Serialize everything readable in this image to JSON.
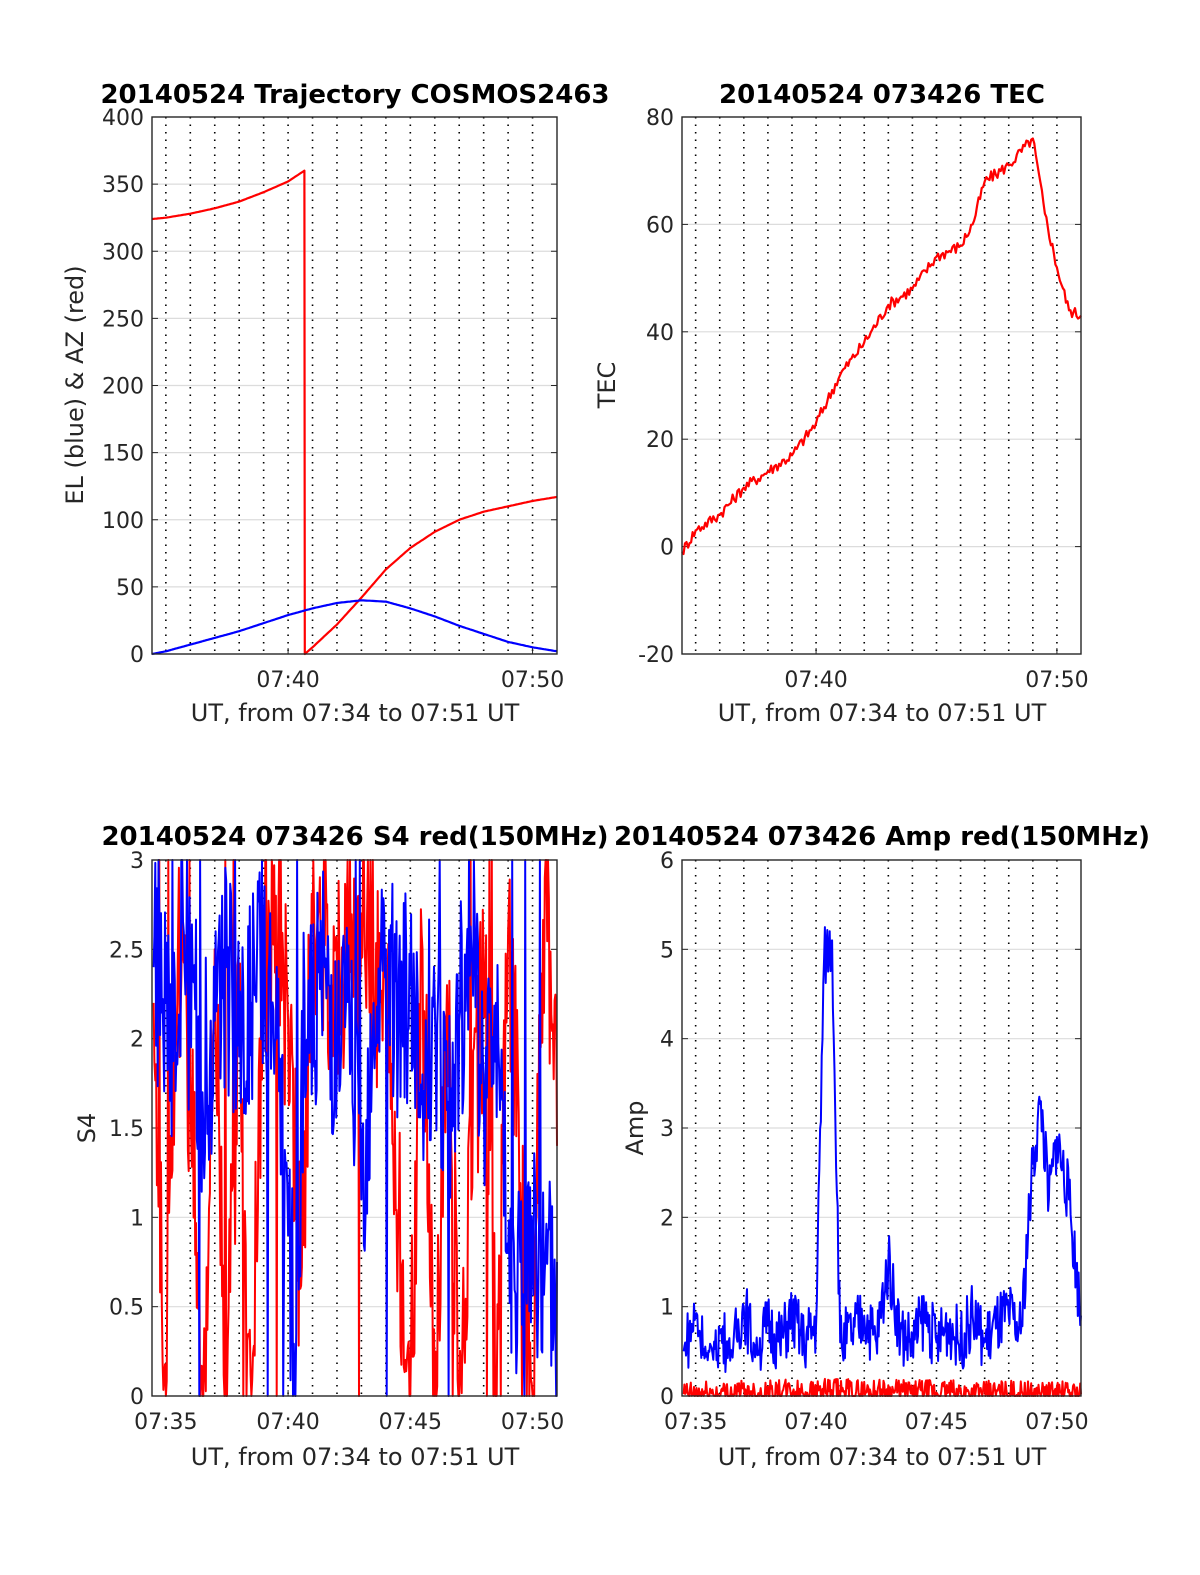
{
  "chart_data": [
    {
      "id": "trajectory",
      "type": "line",
      "title": "20140524 Trajectory COSMOS2463",
      "xlabel": "UT, from 07:34 to 07:51 UT",
      "ylabel": "EL (blue) & AZ (red)",
      "xlim": [
        "07:34:26",
        "07:51:00"
      ],
      "ylim": [
        0,
        400
      ],
      "yticks": [
        "0",
        "50",
        "100",
        "150",
        "200",
        "250",
        "300",
        "350",
        "400"
      ],
      "xticks": [
        "07:40",
        "07:50"
      ],
      "grid": true,
      "series": [
        {
          "color": "#ff0000",
          "points": [
            [
              "07:34:26",
              324
            ],
            [
              "07:35:00",
              325
            ],
            [
              "07:36:00",
              328
            ],
            [
              "07:37:00",
              332
            ],
            [
              "07:38:00",
              337
            ],
            [
              "07:39:00",
              344
            ],
            [
              "07:40:00",
              352
            ],
            [
              "07:40:40",
              360
            ],
            [
              "07:40:41",
              0
            ],
            [
              "07:41:00",
              5
            ],
            [
              "07:42:00",
              22
            ],
            [
              "07:43:00",
              42
            ],
            [
              "07:44:00",
              63
            ],
            [
              "07:45:00",
              79
            ],
            [
              "07:46:00",
              91
            ],
            [
              "07:47:00",
              100
            ],
            [
              "07:48:00",
              106
            ],
            [
              "07:49:00",
              110
            ],
            [
              "07:50:00",
              114
            ],
            [
              "07:51:00",
              117
            ]
          ]
        },
        {
          "color": "#0000ff",
          "points": [
            [
              "07:34:26",
              0
            ],
            [
              "07:35:00",
              2
            ],
            [
              "07:36:00",
              7
            ],
            [
              "07:37:00",
              12
            ],
            [
              "07:38:00",
              17
            ],
            [
              "07:39:00",
              23
            ],
            [
              "07:40:00",
              29
            ],
            [
              "07:41:00",
              34
            ],
            [
              "07:42:00",
              38
            ],
            [
              "07:43:00",
              40
            ],
            [
              "07:44:00",
              39
            ],
            [
              "07:45:00",
              34
            ],
            [
              "07:46:00",
              28
            ],
            [
              "07:47:00",
              21
            ],
            [
              "07:48:00",
              15
            ],
            [
              "07:49:00",
              9
            ],
            [
              "07:50:00",
              5
            ],
            [
              "07:51:00",
              2
            ]
          ]
        }
      ]
    },
    {
      "id": "tec",
      "type": "line",
      "title": "20140524 073426 TEC",
      "xlabel": "UT, from 07:34 to 07:51 UT",
      "ylabel": "TEC",
      "xlim": [
        "07:34:26",
        "07:51:00"
      ],
      "ylim": [
        -20,
        80
      ],
      "yticks": [
        "-20",
        "0",
        "20",
        "40",
        "60",
        "80"
      ],
      "xticks": [
        "07:40",
        "07:50"
      ],
      "grid": true,
      "series": [
        {
          "color": "#ff0000",
          "points": [
            [
              "07:34:26",
              -1
            ],
            [
              "07:35:00",
              3
            ],
            [
              "07:36:00",
              6
            ],
            [
              "07:37:00",
              11
            ],
            [
              "07:38:00",
              14
            ],
            [
              "07:39:00",
              17
            ],
            [
              "07:40:00",
              23
            ],
            [
              "07:41:00",
              32
            ],
            [
              "07:42:00",
              38
            ],
            [
              "07:43:00",
              45
            ],
            [
              "07:44:00",
              48
            ],
            [
              "07:45:00",
              54
            ],
            [
              "07:46:00",
              56
            ],
            [
              "07:46:30",
              60
            ],
            [
              "07:47:00",
              68
            ],
            [
              "07:48:00",
              71
            ],
            [
              "07:49:00",
              76
            ],
            [
              "07:49:30",
              62
            ],
            [
              "07:50:00",
              52
            ],
            [
              "07:50:30",
              44
            ],
            [
              "07:51:00",
              43
            ]
          ]
        }
      ]
    },
    {
      "id": "s4",
      "type": "line",
      "title": "20140524 073426 S4 red(150MHz)",
      "xlabel": "UT, from 07:34 to 07:51 UT",
      "ylabel": "S4",
      "xlim": [
        "07:34:26",
        "07:51:00"
      ],
      "ylim": [
        0,
        3
      ],
      "yticks": [
        "0",
        "0.5",
        "1",
        "1.5",
        "2",
        "2.5",
        "3"
      ],
      "xticks": [
        "07:35",
        "07:40",
        "07:45",
        "07:50"
      ],
      "grid": true,
      "series": [
        {
          "color": "#ff0000",
          "points": [
            [
              "07:34:30",
              2.2
            ],
            [
              "07:35:00",
              0
            ],
            [
              "07:35:30",
              2.6
            ],
            [
              "07:36:00",
              1.8
            ],
            [
              "07:36:30",
              0
            ],
            [
              "07:37:00",
              2.5
            ],
            [
              "07:37:30",
              0
            ],
            [
              "07:38:00",
              2.2
            ],
            [
              "07:38:30",
              0
            ],
            [
              "07:39:00",
              2.4
            ],
            [
              "07:39:30",
              2.8
            ],
            [
              "07:40:00",
              2.1
            ],
            [
              "07:40:30",
              0.6
            ],
            [
              "07:41:00",
              2.6
            ],
            [
              "07:42:00",
              2.4
            ],
            [
              "07:43:00",
              2.7
            ],
            [
              "07:44:00",
              2.2
            ],
            [
              "07:45:00",
              0
            ],
            [
              "07:45:30",
              2.5
            ],
            [
              "07:46:00",
              0
            ],
            [
              "07:46:30",
              2.3
            ],
            [
              "07:47:00",
              0
            ],
            [
              "07:48:00",
              2.4
            ],
            [
              "07:48:30",
              0
            ],
            [
              "07:49:00",
              2.6
            ],
            [
              "07:50:00",
              0
            ],
            [
              "07:50:30",
              2.9
            ],
            [
              "07:51:00",
              1.4
            ]
          ]
        },
        {
          "color": "#0000ff",
          "points": [
            [
              "07:34:30",
              2.4
            ],
            [
              "07:35:00",
              2.2
            ],
            [
              "07:35:30",
              2.0
            ],
            [
              "07:36:00",
              2.3
            ],
            [
              "07:36:30",
              1.7
            ],
            [
              "07:37:00",
              2.1
            ],
            [
              "07:37:30",
              2.4
            ],
            [
              "07:38:00",
              1.9
            ],
            [
              "07:38:30",
              2.2
            ],
            [
              "07:39:00",
              2.5
            ],
            [
              "07:39:30",
              2.0
            ],
            [
              "07:40:00",
              0.9
            ],
            [
              "07:40:20",
              0.35
            ],
            [
              "07:40:40",
              2.3
            ],
            [
              "07:41:00",
              2.0
            ],
            [
              "07:41:30",
              2.4
            ],
            [
              "07:42:00",
              1.9
            ],
            [
              "07:42:30",
              2.2
            ],
            [
              "07:43:00",
              1.1
            ],
            [
              "07:43:30",
              2.2
            ],
            [
              "07:44:00",
              2.5
            ],
            [
              "07:44:30",
              2.0
            ],
            [
              "07:45:00",
              2.3
            ],
            [
              "07:45:30",
              1.8
            ],
            [
              "07:46:00",
              2.2
            ],
            [
              "07:46:30",
              1.6
            ],
            [
              "07:47:00",
              2.1
            ],
            [
              "07:47:30",
              2.5
            ],
            [
              "07:48:00",
              1.8
            ],
            [
              "07:48:30",
              2.2
            ],
            [
              "07:49:00",
              0.8
            ],
            [
              "07:49:30",
              0.75
            ],
            [
              "07:50:00",
              0.8
            ],
            [
              "07:50:30",
              0.7
            ],
            [
              "07:51:00",
              0.75
            ]
          ]
        }
      ]
    },
    {
      "id": "amp",
      "type": "line",
      "title": "20140524 073426 Amp red(150MHz)",
      "xlabel": "UT, from 07:34 to 07:51 UT",
      "ylabel": "Amp",
      "xlim": [
        "07:34:26",
        "07:51:00"
      ],
      "ylim": [
        0,
        6
      ],
      "yticks": [
        "0",
        "1",
        "2",
        "3",
        "4",
        "5",
        "6"
      ],
      "xticks": [
        "07:35",
        "07:40",
        "07:45",
        "07:50"
      ],
      "grid": true,
      "series": [
        {
          "color": "#0000ff",
          "points": [
            [
              "07:34:30",
              0.5
            ],
            [
              "07:35:00",
              0.9
            ],
            [
              "07:35:30",
              0.4
            ],
            [
              "07:36:00",
              0.7
            ],
            [
              "07:36:30",
              0.5
            ],
            [
              "07:37:00",
              1.0
            ],
            [
              "07:37:30",
              0.5
            ],
            [
              "07:38:00",
              0.8
            ],
            [
              "07:38:30",
              0.6
            ],
            [
              "07:39:00",
              0.9
            ],
            [
              "07:39:30",
              0.6
            ],
            [
              "07:40:00",
              0.8
            ],
            [
              "07:40:20",
              4.9
            ],
            [
              "07:40:40",
              5.1
            ],
            [
              "07:41:00",
              0.6
            ],
            [
              "07:41:30",
              0.7
            ],
            [
              "07:42:00",
              0.9
            ],
            [
              "07:42:30",
              0.6
            ],
            [
              "07:43:00",
              1.5
            ],
            [
              "07:43:30",
              0.7
            ],
            [
              "07:44:00",
              0.6
            ],
            [
              "07:44:30",
              0.9
            ],
            [
              "07:45:00",
              0.6
            ],
            [
              "07:45:30",
              0.8
            ],
            [
              "07:46:00",
              0.6
            ],
            [
              "07:46:30",
              0.9
            ],
            [
              "07:47:00",
              0.6
            ],
            [
              "07:47:30",
              0.8
            ],
            [
              "07:48:00",
              0.9
            ],
            [
              "07:48:30",
              0.7
            ],
            [
              "07:49:00",
              2.6
            ],
            [
              "07:49:20",
              3.3
            ],
            [
              "07:49:40",
              2.2
            ],
            [
              "07:50:00",
              2.9
            ],
            [
              "07:50:30",
              2.2
            ],
            [
              "07:51:00",
              0.9
            ]
          ]
        },
        {
          "color": "#ff0000",
          "points": [
            [
              "07:34:30",
              0.02
            ],
            [
              "07:40:40",
              0.05
            ],
            [
              "07:51:00",
              0.02
            ]
          ]
        }
      ]
    }
  ]
}
